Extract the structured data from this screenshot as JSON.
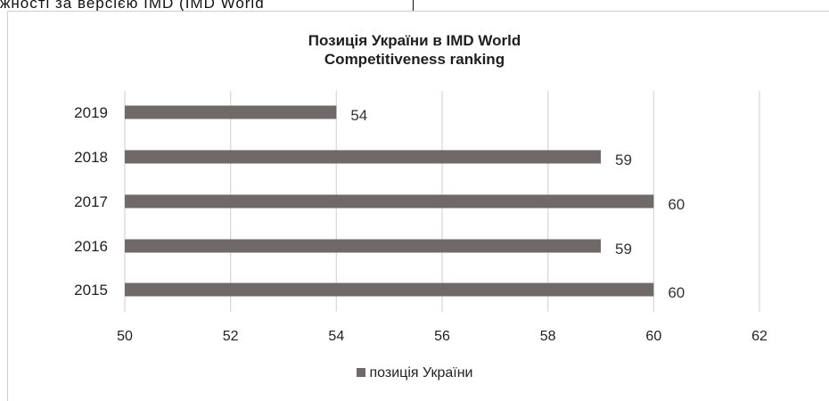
{
  "top_text": "жності за версією IMD (IMD World",
  "chart_data": {
    "type": "bar",
    "orientation": "horizontal",
    "title": "Позиція України в IMD World Competitiveness ranking",
    "title_lines": [
      "Позиція України в IMD World",
      "Competitiveness ranking"
    ],
    "categories": [
      "2019",
      "2018",
      "2017",
      "2016",
      "2015"
    ],
    "series": [
      {
        "name": "позиція України",
        "values": [
          54,
          59,
          60,
          59,
          60
        ]
      }
    ],
    "data_labels": [
      "54",
      "59",
      "60",
      "59",
      "60"
    ],
    "xlim": [
      50,
      62
    ],
    "x_ticks": [
      "50",
      "52",
      "54",
      "56",
      "58",
      "60",
      "62"
    ],
    "grid": "vertical",
    "legend_position": "bottom",
    "bar_color": "#6f6969",
    "grid_color": "#d9d9d9"
  }
}
